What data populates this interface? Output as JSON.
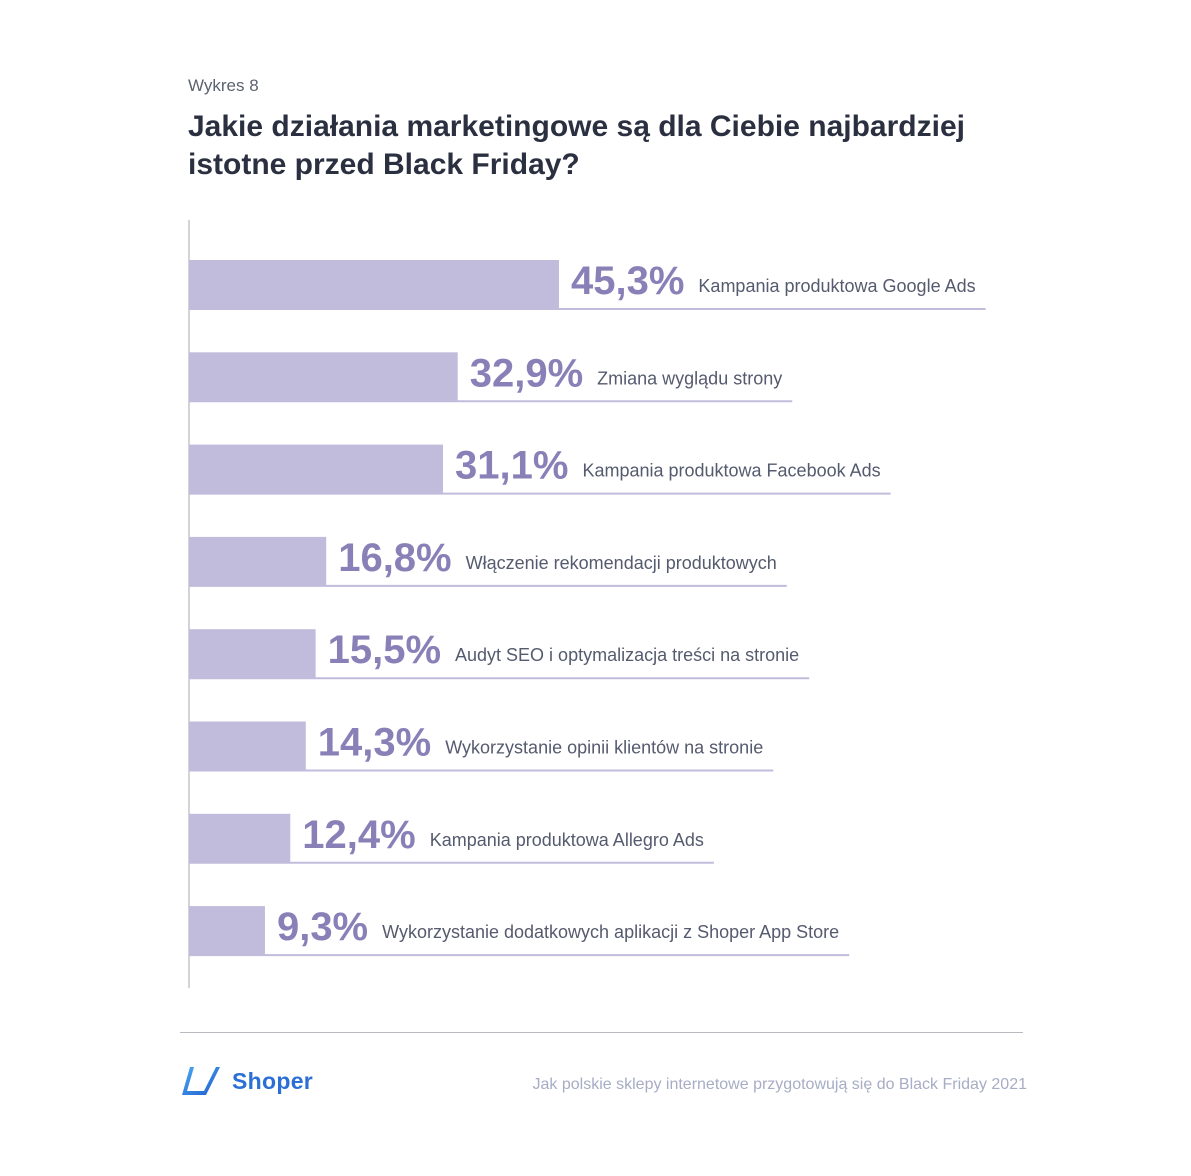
{
  "header": {
    "caption": "Wykres 8",
    "title": "Jakie działania marketingowe są dla Ciebie najbardziej istotne przed Black Friday?"
  },
  "chart_data": {
    "type": "bar",
    "orientation": "horizontal",
    "title": "Jakie działania marketingowe są dla Ciebie najbardziej istotne przed Black Friday?",
    "categories": [
      "Kampania produktowa Google Ads",
      "Zmiana wyglądu strony",
      "Kampania produktowa Facebook Ads",
      "Włączenie rekomendacji produktowych",
      "Audyt SEO i optymalizacja treści na stronie",
      "Wykorzystanie opinii klientów na stronie",
      "Kampania produktowa Allegro Ads",
      "Wykorzystanie dodatkowych aplikacji z Shoper App Store"
    ],
    "values": [
      45.3,
      32.9,
      31.1,
      16.8,
      15.5,
      14.3,
      12.4,
      9.3
    ],
    "value_labels": [
      "45,3%",
      "32,9%",
      "31,1%",
      "16,8%",
      "15,5%",
      "14,3%",
      "12,4%",
      "9,3%"
    ],
    "unit": "%",
    "xlim": [
      0,
      100
    ],
    "grid": false,
    "legend": "none",
    "colors": {
      "bar": "#c1bbdc",
      "value_text": "#8a80b8",
      "label_text": "#555b6e",
      "underline": "#c1bbdc",
      "axis": "#b8b8be"
    }
  },
  "footer": {
    "brand": "Shoper",
    "note": "Jak polskie sklepy internetowe przygotowują się do Black Friday 2021",
    "brand_color": "#2b6fd6"
  }
}
